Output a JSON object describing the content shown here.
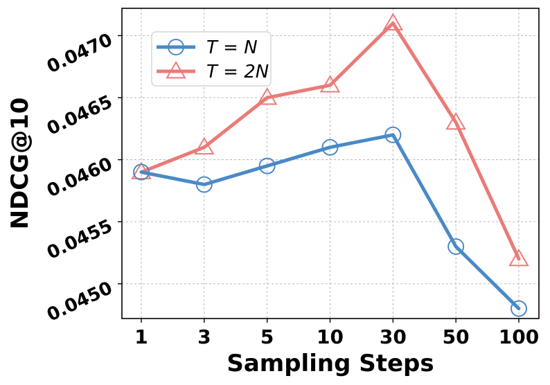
{
  "chart_data": {
    "type": "line",
    "title": "",
    "xlabel": "Sampling Steps",
    "ylabel": "NDCG@10",
    "categories": [
      "1",
      "3",
      "5",
      "10",
      "30",
      "50",
      "100"
    ],
    "yticks": [
      0.045,
      0.0455,
      0.046,
      0.0465,
      0.047
    ],
    "ytick_labels": [
      "0.0450",
      "0.0455",
      "0.0460",
      "0.0465",
      "0.0470"
    ],
    "ylim": [
      0.04472,
      0.04722
    ],
    "grid": true,
    "legend_position": "top-left",
    "series": [
      {
        "name": "T = N",
        "legend_label": "T = N",
        "color": "#4A89C8",
        "marker": "circle",
        "values": [
          0.0459,
          0.0458,
          0.04595,
          0.0461,
          0.0462,
          0.0453,
          0.0448
        ]
      },
      {
        "name": "T = 2N",
        "legend_label": "T = 2N",
        "color": "#EA7B78",
        "marker": "triangle",
        "values": [
          0.0459,
          0.0461,
          0.0465,
          0.0466,
          0.0471,
          0.0463,
          0.0452
        ]
      }
    ]
  }
}
